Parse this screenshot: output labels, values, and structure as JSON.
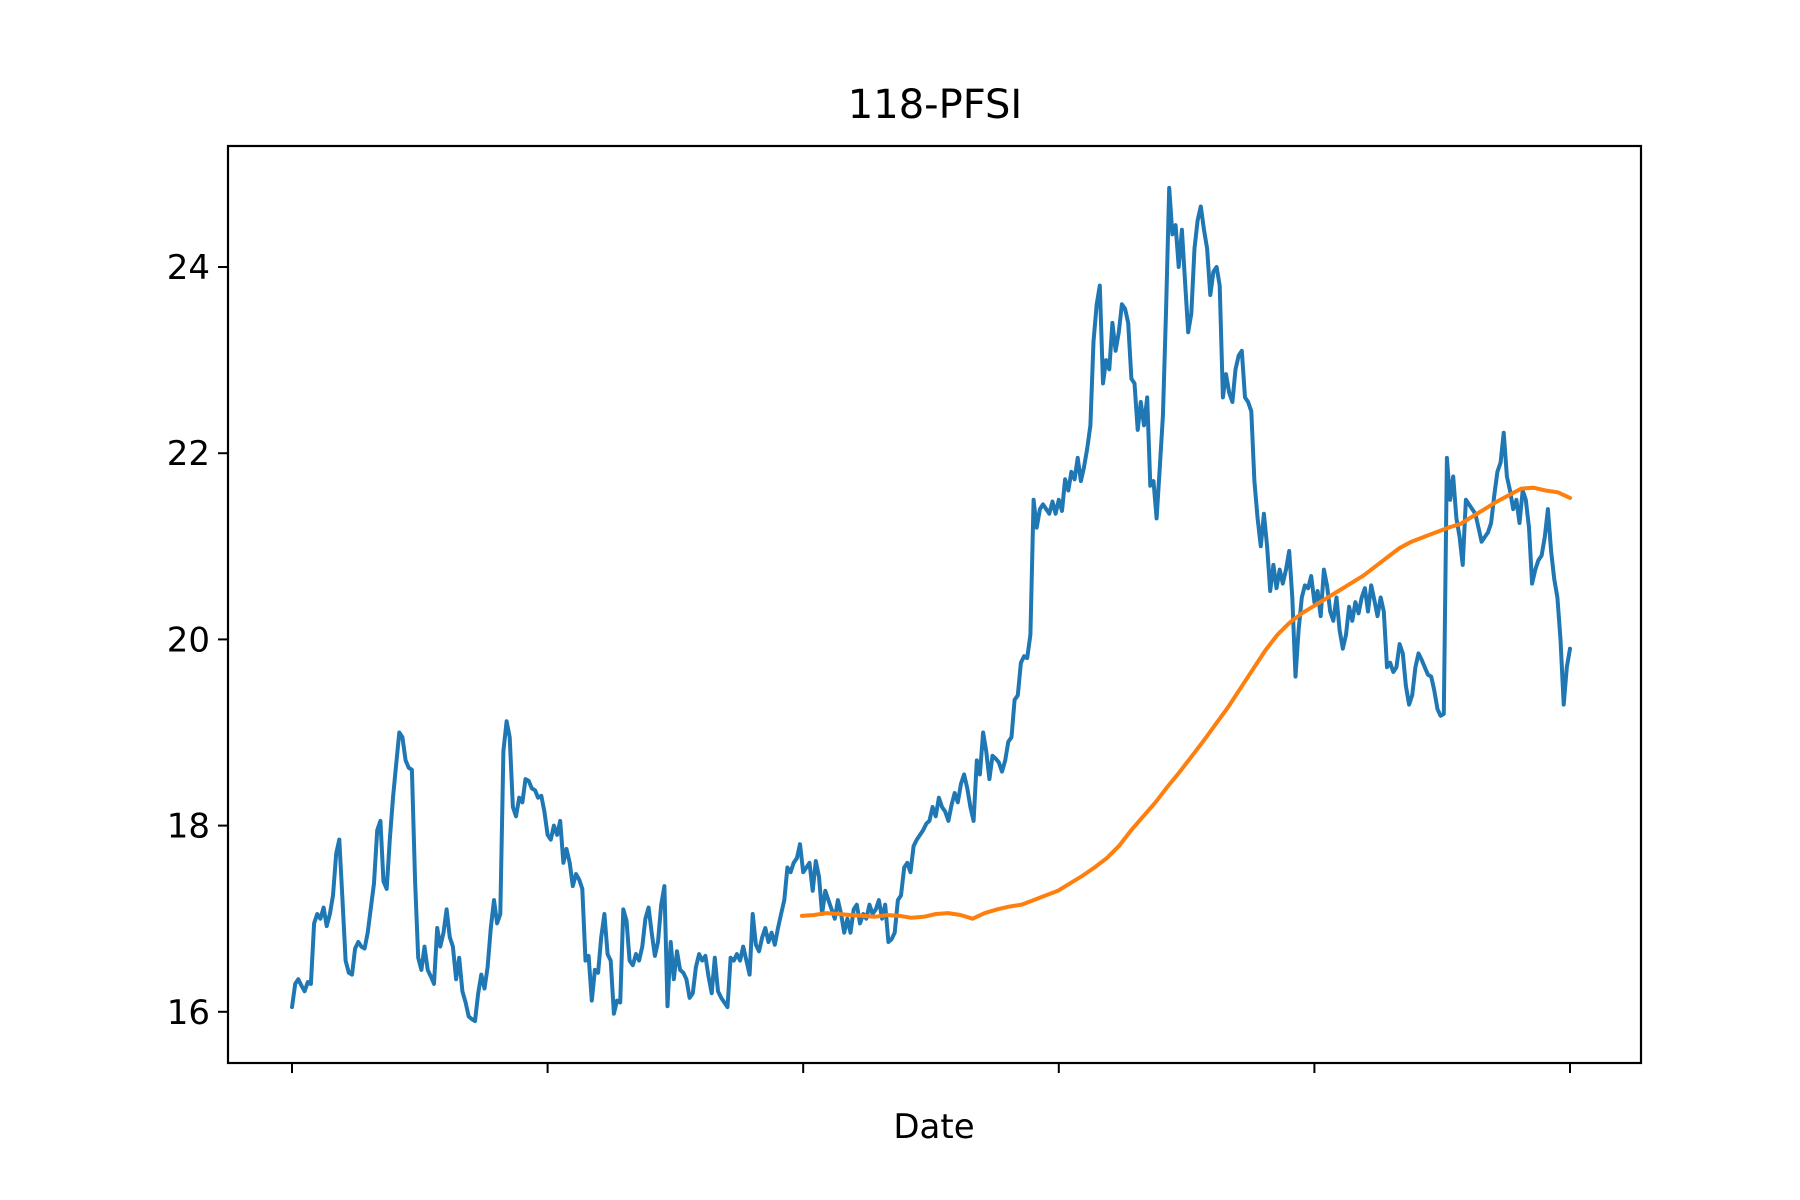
{
  "chart_data": {
    "type": "line",
    "title": "118-PFSI",
    "xlabel": "Date",
    "ylabel": "",
    "ylim": [
      15.45,
      25.3
    ],
    "yticks": [
      16,
      18,
      20,
      22,
      24
    ],
    "x_tick_count": 6,
    "grid": false,
    "legend": "none",
    "series": [
      {
        "color": "#1f77b4",
        "values": [
          16.05,
          16.3,
          16.35,
          16.28,
          16.22,
          16.32,
          16.3,
          16.95,
          17.05,
          17.0,
          17.12,
          16.92,
          17.05,
          17.25,
          17.7,
          17.85,
          17.2,
          16.55,
          16.42,
          16.4,
          16.68,
          16.75,
          16.7,
          16.68,
          16.85,
          17.12,
          17.38,
          17.95,
          18.05,
          17.4,
          17.32,
          17.85,
          18.3,
          18.65,
          19.0,
          18.95,
          18.7,
          18.62,
          18.6,
          17.4,
          16.58,
          16.45,
          16.7,
          16.45,
          16.38,
          16.3,
          16.9,
          16.7,
          16.85,
          17.1,
          16.8,
          16.7,
          16.35,
          16.58,
          16.22,
          16.1,
          15.95,
          15.92,
          15.9,
          16.2,
          16.4,
          16.25,
          16.48,
          16.9,
          17.2,
          16.95,
          17.05,
          18.8,
          19.12,
          18.95,
          18.2,
          18.1,
          18.3,
          18.25,
          18.5,
          18.48,
          18.4,
          18.38,
          18.3,
          18.32,
          18.15,
          17.9,
          17.85,
          18.0,
          17.9,
          18.05,
          17.6,
          17.75,
          17.6,
          17.35,
          17.48,
          17.42,
          17.32,
          16.55,
          16.6,
          16.12,
          16.45,
          16.42,
          16.8,
          17.05,
          16.62,
          16.55,
          15.98,
          16.12,
          16.1,
          17.1,
          16.98,
          16.55,
          16.5,
          16.62,
          16.55,
          16.7,
          17.0,
          17.12,
          16.85,
          16.6,
          16.75,
          17.15,
          17.35,
          16.06,
          16.75,
          16.35,
          16.65,
          16.45,
          16.42,
          16.35,
          16.15,
          16.2,
          16.48,
          16.62,
          16.55,
          16.6,
          16.38,
          16.2,
          16.58,
          16.22,
          16.15,
          16.1,
          16.05,
          16.58,
          16.55,
          16.62,
          16.55,
          16.7,
          16.55,
          16.4,
          17.05,
          16.72,
          16.65,
          16.8,
          16.9,
          16.75,
          16.85,
          16.72,
          16.9,
          17.05,
          17.2,
          17.55,
          17.5,
          17.6,
          17.65,
          17.8,
          17.5,
          17.55,
          17.6,
          17.3,
          17.62,
          17.45,
          17.05,
          17.3,
          17.2,
          17.1,
          17.0,
          17.2,
          17.05,
          16.85,
          17.0,
          16.85,
          17.1,
          17.15,
          16.95,
          17.05,
          17.0,
          17.15,
          17.05,
          17.1,
          17.2,
          17.0,
          17.15,
          16.75,
          16.78,
          16.85,
          17.2,
          17.25,
          17.55,
          17.6,
          17.5,
          17.78,
          17.85,
          17.9,
          17.95,
          18.02,
          18.05,
          18.2,
          18.1,
          18.3,
          18.2,
          18.15,
          18.05,
          18.22,
          18.35,
          18.25,
          18.45,
          18.55,
          18.4,
          18.2,
          18.05,
          18.7,
          18.55,
          19.0,
          18.8,
          18.5,
          18.75,
          18.72,
          18.68,
          18.58,
          18.7,
          18.9,
          18.95,
          19.35,
          19.4,
          19.75,
          19.82,
          19.8,
          20.05,
          21.5,
          21.2,
          21.4,
          21.45,
          21.4,
          21.35,
          21.48,
          21.35,
          21.5,
          21.38,
          21.72,
          21.6,
          21.8,
          21.72,
          21.95,
          21.7,
          21.85,
          22.05,
          22.3,
          23.2,
          23.6,
          23.8,
          22.75,
          23.0,
          22.9,
          23.4,
          23.1,
          23.3,
          23.6,
          23.55,
          23.4,
          22.8,
          22.75,
          22.25,
          22.55,
          22.3,
          22.6,
          21.65,
          21.7,
          21.3,
          21.85,
          22.4,
          23.55,
          24.85,
          24.35,
          24.45,
          24.0,
          24.4,
          23.85,
          23.3,
          23.5,
          24.2,
          24.5,
          24.65,
          24.4,
          24.2,
          23.7,
          23.95,
          24.0,
          23.8,
          22.6,
          22.85,
          22.65,
          22.55,
          22.9,
          23.05,
          23.1,
          22.6,
          22.55,
          22.45,
          21.7,
          21.3,
          21.0,
          21.35,
          21.0,
          20.52,
          20.8,
          20.55,
          20.75,
          20.6,
          20.75,
          20.95,
          20.45,
          19.6,
          20.1,
          20.45,
          20.58,
          20.55,
          20.68,
          20.4,
          20.52,
          20.25,
          20.75,
          20.58,
          20.3,
          20.2,
          20.45,
          20.1,
          19.9,
          20.05,
          20.35,
          20.2,
          20.4,
          20.28,
          20.45,
          20.55,
          20.3,
          20.58,
          20.42,
          20.25,
          20.45,
          20.3,
          19.7,
          19.75,
          19.65,
          19.7,
          19.95,
          19.85,
          19.5,
          19.3,
          19.4,
          19.7,
          19.85,
          19.78,
          19.7,
          19.62,
          19.6,
          19.45,
          19.25,
          19.18,
          19.2,
          21.95,
          21.5,
          21.75,
          21.3,
          21.1,
          20.8,
          21.5,
          21.45,
          21.4,
          21.35,
          21.2,
          21.05,
          21.1,
          21.15,
          21.25,
          21.55,
          21.8,
          21.9,
          22.22,
          21.75,
          21.6,
          21.4,
          21.5,
          21.25,
          21.6,
          21.5,
          21.2,
          20.6,
          20.75,
          20.85,
          20.9,
          21.1,
          21.4,
          20.95,
          20.65,
          20.45,
          20.0,
          19.3,
          19.7,
          19.9
        ]
      },
      {
        "color": "#ff7f0e",
        "start_fraction": 0.399,
        "values": [
          17.03,
          17.04,
          17.06,
          17.05,
          17.04,
          17.03,
          17.02,
          17.04,
          17.03,
          17.01,
          17.02,
          17.05,
          17.06,
          17.04,
          17.0,
          17.06,
          17.1,
          17.13,
          17.15,
          17.2,
          17.25,
          17.3,
          17.38,
          17.46,
          17.55,
          17.65,
          17.78,
          17.95,
          18.1,
          18.25,
          18.42,
          18.58,
          18.75,
          18.92,
          19.1,
          19.28,
          19.48,
          19.68,
          19.88,
          20.05,
          20.18,
          20.28,
          20.36,
          20.44,
          20.52,
          20.6,
          20.68,
          20.78,
          20.88,
          20.98,
          21.05,
          21.1,
          21.15,
          21.2,
          21.24,
          21.32,
          21.4,
          21.48,
          21.55,
          21.62,
          21.63,
          21.6,
          21.58,
          21.52
        ]
      }
    ]
  }
}
